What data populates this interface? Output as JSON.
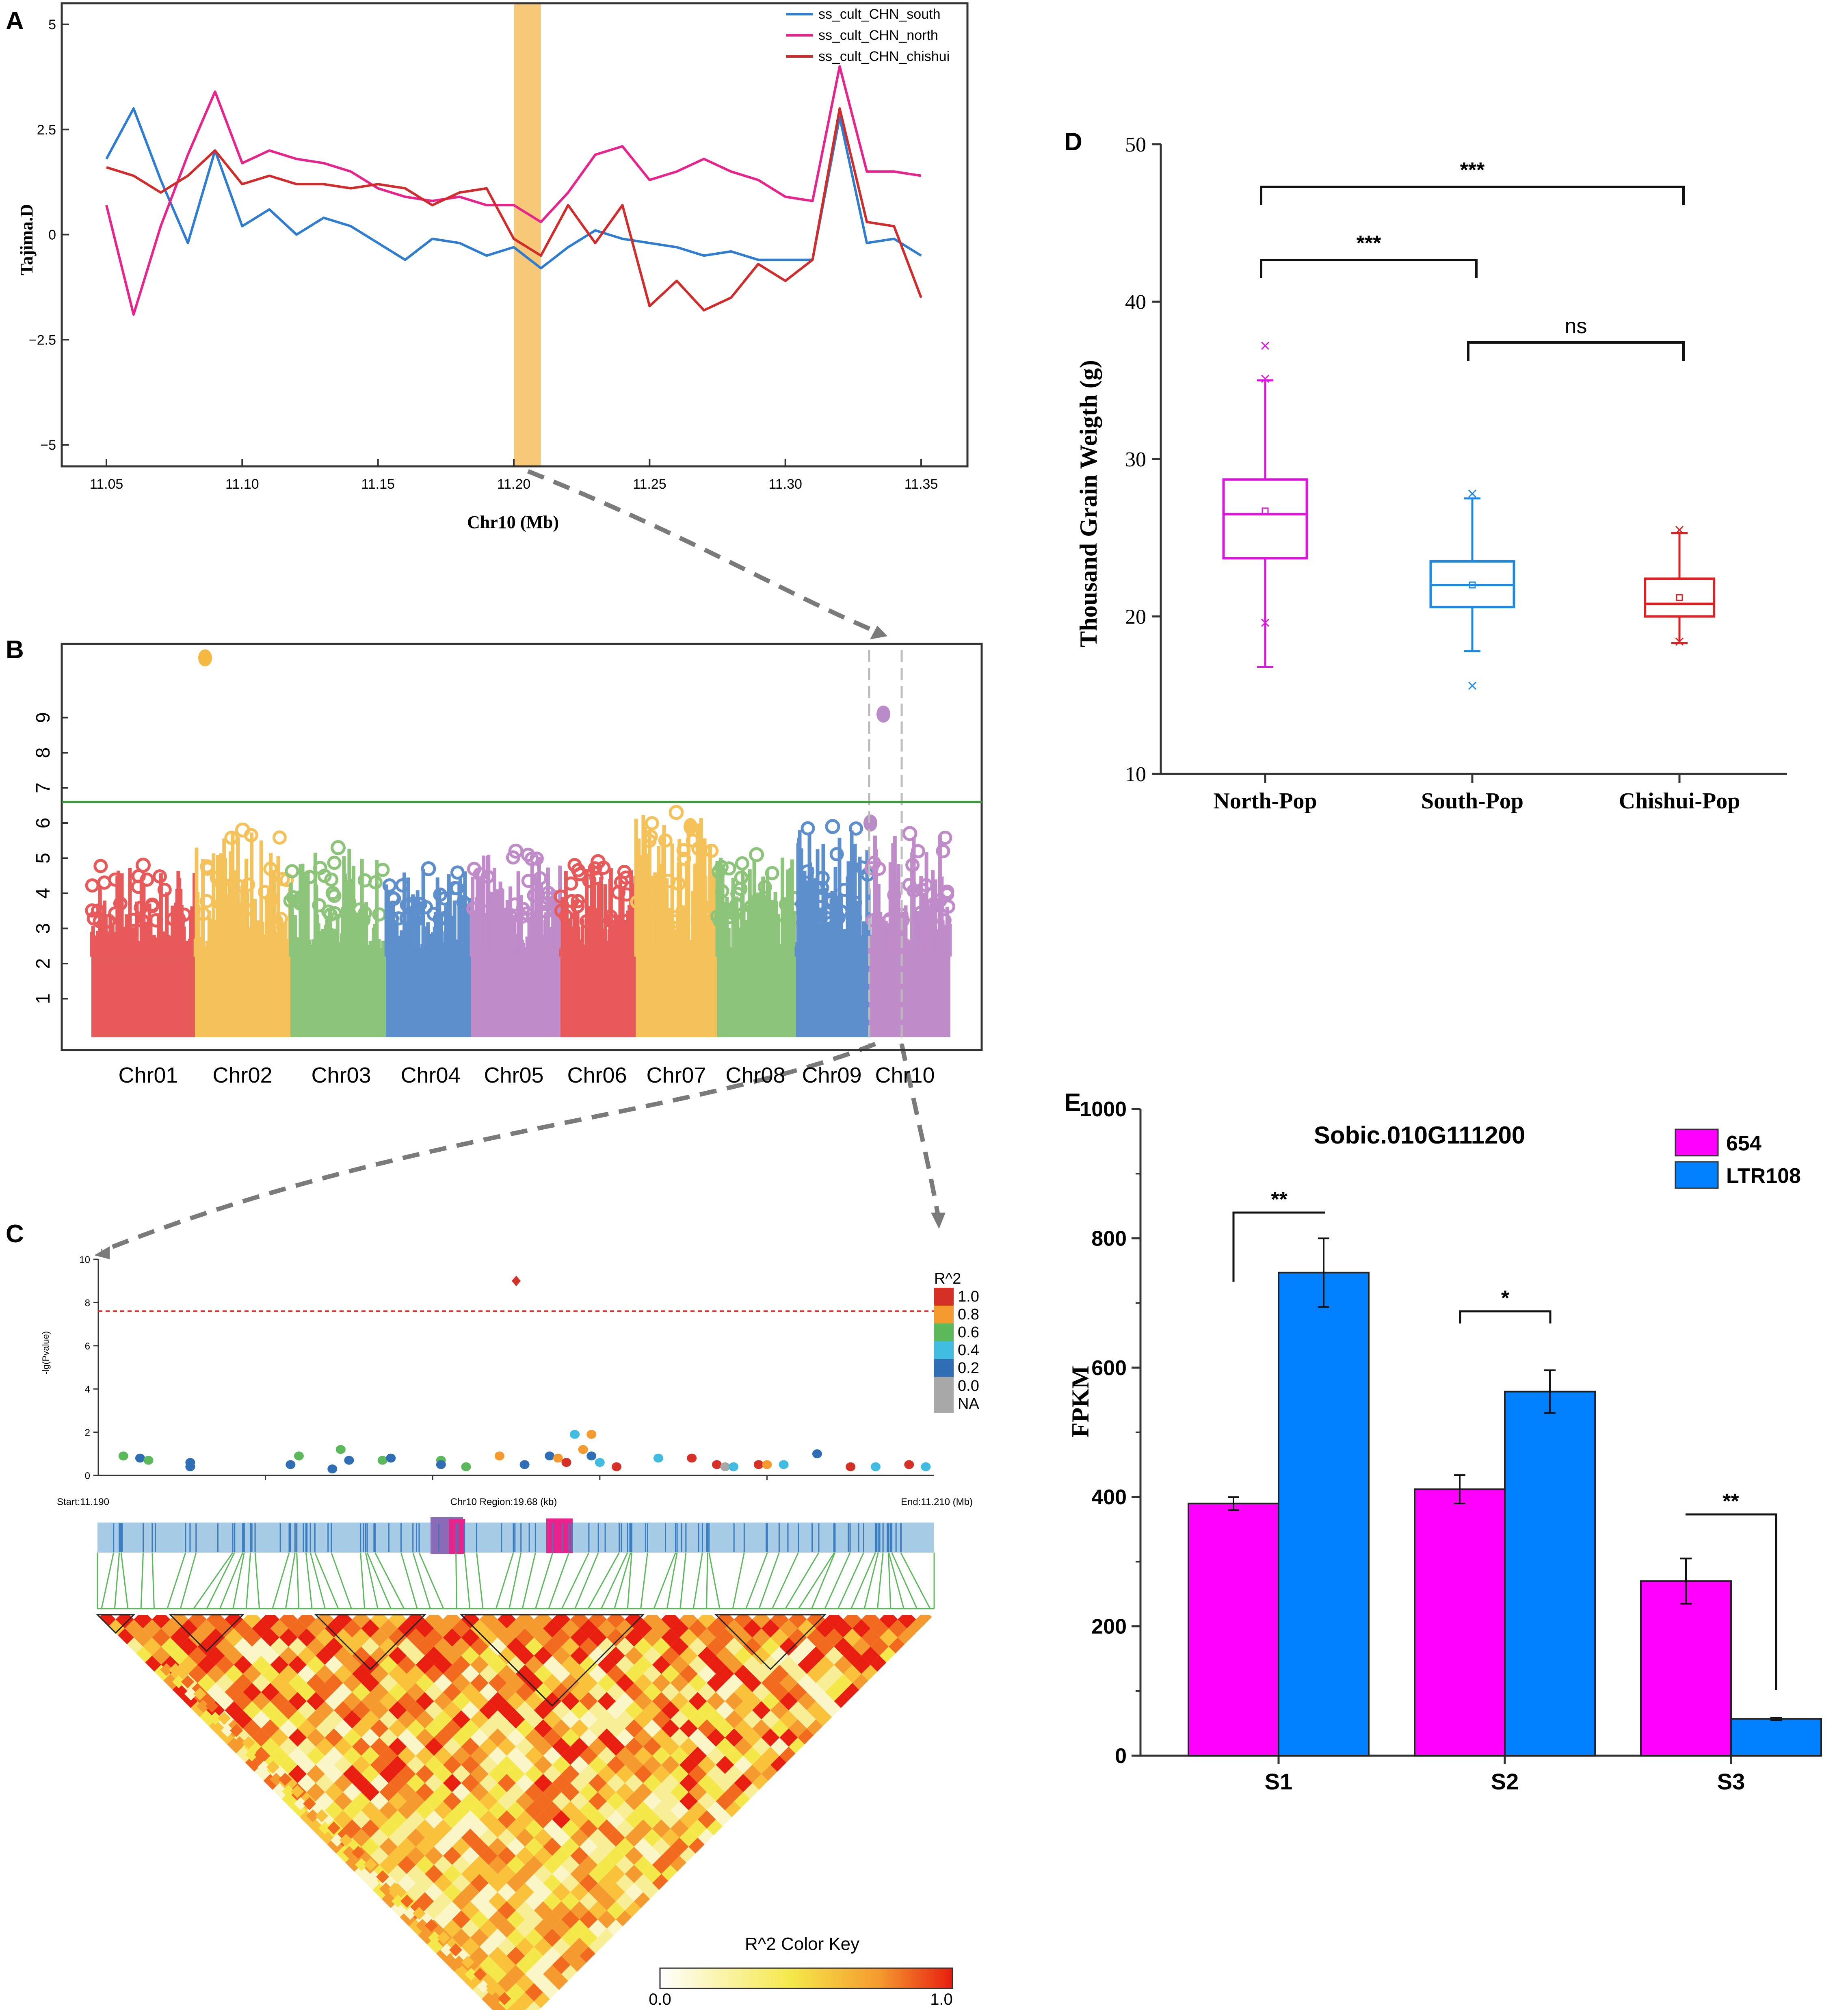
{
  "panel_labels": {
    "a": "A",
    "b": "B",
    "c": "C",
    "d": "D",
    "e": "E"
  },
  "colors": {
    "south": "#2E7DD1",
    "north": "#E8248C",
    "chishui": "#D12B2B",
    "highlight": "#F4B54B",
    "chroms": [
      "#E85A5A",
      "#F5C25A",
      "#8CC47A",
      "#5C8FCB",
      "#C08BC9",
      "#E85A5A",
      "#F5C25A",
      "#8CC47A",
      "#5C8FCB",
      "#C08BC9"
    ],
    "box_north": "#E014E0",
    "box_south": "#1E88E5",
    "box_chishui": "#E02020",
    "bar_654": "#FF00FF",
    "bar_ltr108": "#0080FF"
  },
  "chart_data": [
    {
      "id": "A",
      "type": "line",
      "title": "",
      "xlabel": "Chr10 (Mb)",
      "ylabel": "Tajima.D",
      "xlim": [
        11.05,
        11.35
      ],
      "ylim": [
        -5,
        5
      ],
      "xticks": [
        "11.05",
        "11.10",
        "11.15",
        "11.20",
        "11.25",
        "11.30",
        "11.35"
      ],
      "yticks": [
        "5",
        "2.5",
        "0",
        "−2.5",
        "−5"
      ],
      "highlight_range": [
        11.2,
        11.21
      ],
      "x": [
        11.05,
        11.06,
        11.07,
        11.08,
        11.09,
        11.1,
        11.11,
        11.12,
        11.13,
        11.14,
        11.15,
        11.16,
        11.17,
        11.18,
        11.19,
        11.2,
        11.21,
        11.22,
        11.23,
        11.24,
        11.25,
        11.26,
        11.27,
        11.28,
        11.29,
        11.3,
        11.31,
        11.32,
        11.33,
        11.34,
        11.35
      ],
      "series": [
        {
          "name": "ss_cult_CHN_south",
          "color": "#2E7DD1",
          "values": [
            1.8,
            3.0,
            1.3,
            -0.2,
            2.0,
            0.2,
            0.6,
            0.0,
            0.4,
            0.2,
            -0.2,
            -0.6,
            -0.1,
            -0.2,
            -0.5,
            -0.3,
            -0.8,
            -0.3,
            0.1,
            -0.1,
            -0.2,
            -0.3,
            -0.5,
            -0.4,
            -0.6,
            -0.6,
            -0.6,
            2.8,
            -0.2,
            -0.1,
            -0.5
          ]
        },
        {
          "name": "ss_cult_CHN_north",
          "color": "#E8248C",
          "values": [
            0.7,
            -1.9,
            0.2,
            1.9,
            3.4,
            1.7,
            2.0,
            1.8,
            1.7,
            1.5,
            1.1,
            0.9,
            0.8,
            0.9,
            0.7,
            0.7,
            0.3,
            1.0,
            1.9,
            2.1,
            1.3,
            1.5,
            1.8,
            1.5,
            1.3,
            0.9,
            0.8,
            4.0,
            1.5,
            1.5,
            1.4
          ]
        },
        {
          "name": "ss_cult_CHN_chishui",
          "color": "#D12B2B",
          "values": [
            1.6,
            1.4,
            1.0,
            1.4,
            2.0,
            1.2,
            1.4,
            1.2,
            1.2,
            1.1,
            1.2,
            1.1,
            0.7,
            1.0,
            1.1,
            -0.1,
            -0.5,
            0.7,
            -0.2,
            0.7,
            -1.7,
            -1.1,
            -1.8,
            -1.5,
            -0.7,
            -1.1,
            -0.6,
            3.0,
            0.3,
            0.2,
            -1.5
          ]
        }
      ]
    },
    {
      "id": "B",
      "type": "scatter",
      "title": "",
      "xlabel": "",
      "ylabel": "",
      "ylim": [
        0,
        11
      ],
      "yticks": [
        "1",
        "2",
        "3",
        "4",
        "5",
        "6",
        "7",
        "8",
        "9"
      ],
      "threshold": 6.6,
      "categories": [
        "Chr01",
        "Chr02",
        "Chr03",
        "Chr04",
        "Chr05",
        "Chr06",
        "Chr07",
        "Chr08",
        "Chr09",
        "Chr10"
      ],
      "peak_max": [
        4.8,
        5.8,
        5.3,
        4.7,
        5.2,
        4.9,
        6.3,
        5.1,
        5.9,
        5.7
      ],
      "top_hits": [
        {
          "chrom": "Chr02",
          "value": 10.7
        },
        {
          "chrom": "Chr10",
          "value": 9.1
        },
        {
          "chrom": "Chr07",
          "value": 5.9
        },
        {
          "chrom": "Chr10",
          "value": 6.0
        }
      ]
    },
    {
      "id": "C",
      "type": "scatter",
      "title": "",
      "xlabel": "Chr10 Region:19.68 (kb)",
      "ylabel": "-lg(Pvalue)",
      "start_label": "Start:11.190",
      "end_label": "End:11.210 (Mb)",
      "ylim": [
        0,
        10
      ],
      "yticks": [
        "0",
        "2",
        "4",
        "6",
        "8",
        "10"
      ],
      "threshold": 7.6,
      "legend_title": "R^2",
      "legend": [
        {
          "label": "1.0",
          "color": "#D73027"
        },
        {
          "label": "0.8",
          "color": "#F59A2E"
        },
        {
          "label": "0.6",
          "color": "#5BB85B"
        },
        {
          "label": "0.4",
          "color": "#3FBCE0"
        },
        {
          "label": "0.2",
          "color": "#2F6DB5"
        },
        {
          "label": "0.0",
          "color": "#A8A8A8"
        },
        {
          "label": "NA",
          "color": "#A8A8A8"
        }
      ],
      "points": [
        {
          "x": 0.03,
          "y": 0.9,
          "c": "#5BB85B"
        },
        {
          "x": 0.05,
          "y": 0.8,
          "c": "#2F6DB5"
        },
        {
          "x": 0.06,
          "y": 0.7,
          "c": "#5BB85B"
        },
        {
          "x": 0.11,
          "y": 0.6,
          "c": "#2F6DB5"
        },
        {
          "x": 0.11,
          "y": 0.4,
          "c": "#2F6DB5"
        },
        {
          "x": 0.23,
          "y": 0.5,
          "c": "#2F6DB5"
        },
        {
          "x": 0.24,
          "y": 0.9,
          "c": "#5BB85B"
        },
        {
          "x": 0.28,
          "y": 0.3,
          "c": "#2F6DB5"
        },
        {
          "x": 0.29,
          "y": 1.2,
          "c": "#5BB85B"
        },
        {
          "x": 0.3,
          "y": 0.7,
          "c": "#2F6DB5"
        },
        {
          "x": 0.34,
          "y": 0.7,
          "c": "#5BB85B"
        },
        {
          "x": 0.35,
          "y": 0.8,
          "c": "#2F6DB5"
        },
        {
          "x": 0.41,
          "y": 0.7,
          "c": "#5BB85B"
        },
        {
          "x": 0.41,
          "y": 0.5,
          "c": "#2F6DB5"
        },
        {
          "x": 0.44,
          "y": 0.4,
          "c": "#5BB85B"
        },
        {
          "x": 0.48,
          "y": 0.9,
          "c": "#F59A2E"
        },
        {
          "x": 0.51,
          "y": 0.5,
          "c": "#2F6DB5"
        },
        {
          "x": 0.54,
          "y": 0.9,
          "c": "#2F6DB5"
        },
        {
          "x": 0.55,
          "y": 0.8,
          "c": "#F59A2E"
        },
        {
          "x": 0.56,
          "y": 0.6,
          "c": "#D73027"
        },
        {
          "x": 0.57,
          "y": 1.9,
          "c": "#3FBCE0"
        },
        {
          "x": 0.58,
          "y": 1.2,
          "c": "#F59A2E"
        },
        {
          "x": 0.59,
          "y": 0.9,
          "c": "#2F6DB5"
        },
        {
          "x": 0.59,
          "y": 1.9,
          "c": "#F59A2E"
        },
        {
          "x": 0.6,
          "y": 0.6,
          "c": "#3FBCE0"
        },
        {
          "x": 0.62,
          "y": 0.4,
          "c": "#D73027"
        },
        {
          "x": 0.67,
          "y": 0.8,
          "c": "#3FBCE0"
        },
        {
          "x": 0.71,
          "y": 0.8,
          "c": "#D73027"
        },
        {
          "x": 0.74,
          "y": 0.5,
          "c": "#D73027"
        },
        {
          "x": 0.75,
          "y": 0.4,
          "c": "#A8A8A8"
        },
        {
          "x": 0.76,
          "y": 0.4,
          "c": "#3FBCE0"
        },
        {
          "x": 0.79,
          "y": 0.5,
          "c": "#D73027"
        },
        {
          "x": 0.8,
          "y": 0.5,
          "c": "#F59A2E"
        },
        {
          "x": 0.82,
          "y": 0.5,
          "c": "#3FBCE0"
        },
        {
          "x": 0.86,
          "y": 1.0,
          "c": "#2F6DB5"
        },
        {
          "x": 0.9,
          "y": 0.4,
          "c": "#D73027"
        },
        {
          "x": 0.93,
          "y": 0.4,
          "c": "#3FBCE0"
        },
        {
          "x": 0.97,
          "y": 0.5,
          "c": "#D73027"
        },
        {
          "x": 0.99,
          "y": 0.4,
          "c": "#3FBCE0"
        }
      ],
      "top_snp": {
        "x": 0.5,
        "y": 9.0,
        "c": "#D73027"
      },
      "color_key_title": "R^2 Color Key",
      "color_key_min": "0.0",
      "color_key_max": "1.0"
    },
    {
      "id": "D",
      "type": "box",
      "title": "",
      "xlabel": "",
      "ylabel": "Thousand Grain Weigth (g)",
      "ylim": [
        10,
        50
      ],
      "yticks": [
        "10",
        "20",
        "30",
        "40",
        "50"
      ],
      "categories": [
        "North-Pop",
        "South-Pop",
        "Chishui-Pop"
      ],
      "boxes": [
        {
          "name": "North-Pop",
          "min": 16.8,
          "q1": 23.7,
          "median": 26.5,
          "q3": 28.7,
          "max": 35.0,
          "mean": 26.7,
          "outliers": [
            37.2,
            35.1,
            19.6
          ]
        },
        {
          "name": "South-Pop",
          "min": 17.8,
          "q1": 20.6,
          "median": 22.0,
          "q3": 23.5,
          "max": 27.5,
          "mean": 22.0,
          "outliers": [
            27.8,
            15.6
          ]
        },
        {
          "name": "Chishui-Pop",
          "min": 18.3,
          "q1": 20.0,
          "median": 20.8,
          "q3": 22.4,
          "max": 25.3,
          "mean": 21.2,
          "outliers": [
            25.5,
            18.4
          ]
        }
      ],
      "comparisons": [
        {
          "from": 0,
          "to": 2,
          "label": "***"
        },
        {
          "from": 0,
          "to": 1,
          "label": "***"
        },
        {
          "from": 1,
          "to": 2,
          "label": "ns"
        }
      ]
    },
    {
      "id": "E",
      "type": "bar",
      "title": "Sobic.010G111200",
      "xlabel": "",
      "ylabel": "FPKM",
      "ylim": [
        0,
        1000
      ],
      "yticks": [
        "0",
        "200",
        "400",
        "600",
        "800",
        "1000"
      ],
      "categories": [
        "S1",
        "S2",
        "S3"
      ],
      "series": [
        {
          "name": "654",
          "color": "#FF00FF",
          "values": [
            390,
            412,
            270
          ],
          "errors": [
            10,
            22,
            35
          ]
        },
        {
          "name": "LTR108",
          "color": "#0080FF",
          "values": [
            747,
            563,
            57
          ],
          "errors": [
            53,
            33,
            2
          ]
        }
      ],
      "significance": [
        "**",
        "*",
        "**"
      ]
    }
  ]
}
